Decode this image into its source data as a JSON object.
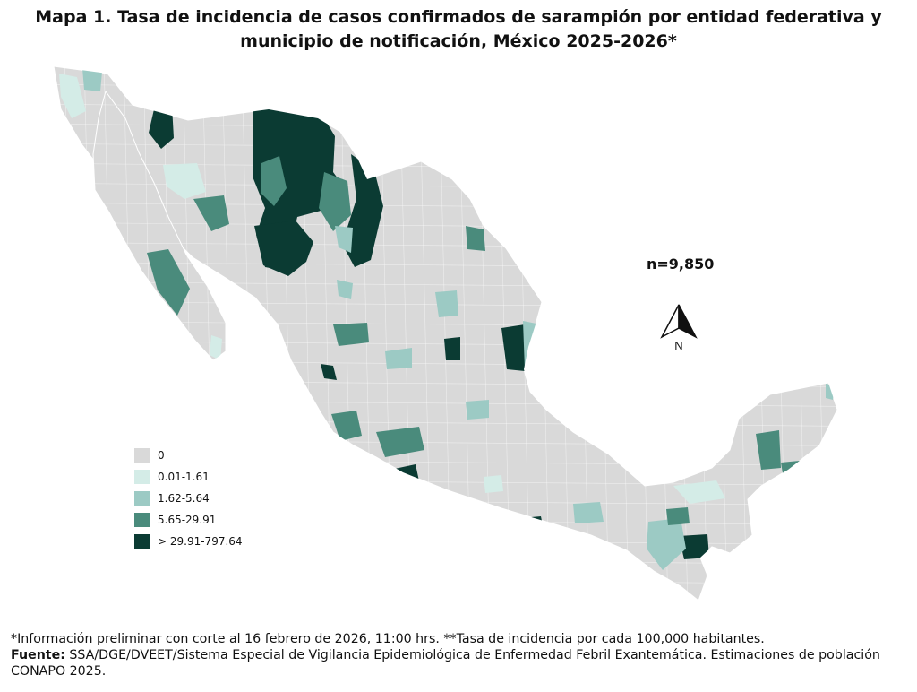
{
  "title": {
    "line1": "Mapa 1. Tasa de incidencia de casos confirmados de sarampión por entidad federativa y",
    "line2": "municipio de  notificación, México 2025-2026*"
  },
  "map": {
    "total_cases_label": "n=9,850",
    "north_label": "N",
    "base_color": "#d9d9d9",
    "border_color": "#ffffff"
  },
  "legend": [
    {
      "label": "0",
      "color": "#d9d9d9"
    },
    {
      "label": "0.01-1.61",
      "color": "#d4ece7"
    },
    {
      "label": "1.62-5.64",
      "color": "#9ccac4"
    },
    {
      "label": "5.65-29.91",
      "color": "#4a8b7c"
    },
    {
      "label": "> 29.91-797.64",
      "color": "#0b3b33"
    }
  ],
  "footnote": {
    "line1": "*Información preliminar con corte al 16 febrero de 2026, 11:00 hrs. **Tasa de incidencia por cada 100,000 habitantes.",
    "source_label": "Fuente:",
    "source_text": " SSA/DGE/DVEET/Sistema Especial de Vigilancia Epidemiológica de Enfermedad Febril Exantemática. Estimaciones de población CONAPO 2025."
  }
}
